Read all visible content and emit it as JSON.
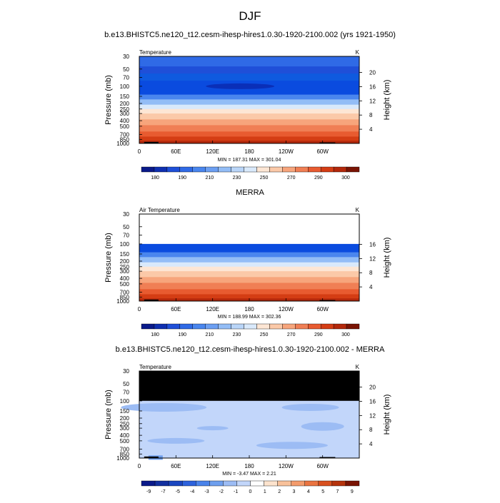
{
  "figure_title": "DJF",
  "chart_data": [
    {
      "type": "heatmap",
      "title": "b.e13.BHISTC5.ne120_t12.cesm-ihesp-hires1.0.30-1920-2100.002 (yrs 1921-1950)",
      "field_label": "Temperature",
      "units": "K",
      "xlabel": "",
      "ylabel": "Pressure (mb)",
      "y2label": "Height (km)",
      "x_ticks": [
        "0",
        "60E",
        "120E",
        "180",
        "120W",
        "60W"
      ],
      "y_ticks": [
        "30",
        "50",
        "70",
        "100",
        "150",
        "200",
        "250",
        "300",
        "400",
        "500",
        "700",
        "850",
        "1000"
      ],
      "y2_ticks": [
        "20",
        "16",
        "12",
        "8",
        "4"
      ],
      "ylim": [
        1000,
        30
      ],
      "stats": "MIN = 187.31  MAX = 301.04",
      "colorbar_labels": [
        "180",
        "190",
        "210",
        "230",
        "250",
        "270",
        "290",
        "300"
      ]
    },
    {
      "type": "heatmap",
      "title": "MERRA",
      "field_label": "Air Temperature",
      "units": "K",
      "xlabel": "",
      "ylabel": "Pressure (mb)",
      "y2label": "Height (km)",
      "x_ticks": [
        "0",
        "60E",
        "120E",
        "180",
        "120W",
        "60W"
      ],
      "y_ticks": [
        "30",
        "50",
        "70",
        "100",
        "150",
        "200",
        "250",
        "300",
        "400",
        "500",
        "700",
        "850",
        "1000"
      ],
      "y2_ticks": [
        "16",
        "12",
        "8",
        "4"
      ],
      "ylim": [
        1000,
        30
      ],
      "stats": "MIN = 188.99  MAX = 302.36",
      "colorbar_labels": [
        "180",
        "190",
        "210",
        "230",
        "250",
        "270",
        "290",
        "300"
      ]
    },
    {
      "type": "heatmap",
      "title": "b.e13.BHISTC5.ne120_t12.cesm-ihesp-hires1.0.30-1920-2100.002 - MERRA",
      "field_label": "Temperature",
      "units": "K",
      "xlabel": "",
      "ylabel": "Pressure (mb)",
      "y2label": "Height (km)",
      "x_ticks": [
        "0",
        "60E",
        "120E",
        "180",
        "120W",
        "60W"
      ],
      "y_ticks": [
        "30",
        "50",
        "70",
        "100",
        "150",
        "200",
        "250",
        "300",
        "400",
        "500",
        "700",
        "850",
        "1000"
      ],
      "y2_ticks": [
        "20",
        "16",
        "12",
        "8",
        "4"
      ],
      "ylim": [
        1000,
        30
      ],
      "stats": "MIN =  -3.47  MAX =   2.21",
      "colorbar_labels": [
        "-9",
        "-7",
        "-5",
        "-4",
        "-3",
        "-2",
        "-1",
        "0",
        "1",
        "2",
        "3",
        "4",
        "5",
        "7",
        "9"
      ]
    }
  ]
}
